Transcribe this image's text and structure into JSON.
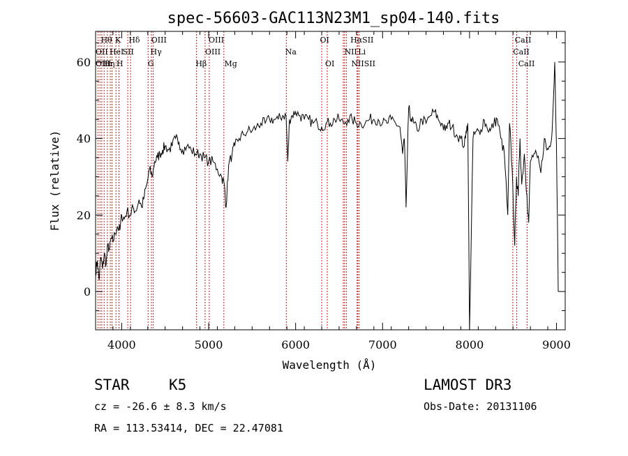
{
  "chart_data": {
    "type": "line",
    "title": "spec-56603-GAC113N23M1_sp04-140.fits",
    "xlabel": "Wavelength (Å)",
    "ylabel": "Flux (relative)",
    "xlim": [
      3700,
      9100
    ],
    "ylim": [
      -10,
      68
    ],
    "xticks": [
      4000,
      5000,
      6000,
      7000,
      8000,
      9000
    ],
    "yticks": [
      0,
      20,
      40,
      60
    ],
    "grid": false,
    "series": [
      {
        "x": [
          3700,
          3720,
          3740,
          3760,
          3780,
          3800,
          3820,
          3840,
          3860,
          3880,
          3900,
          3920,
          3950,
          3980,
          4000,
          4030,
          4060,
          4100,
          4130,
          4160,
          4200,
          4230,
          4260,
          4290,
          4320,
          4350,
          4380,
          4410,
          4440,
          4470,
          4500,
          4540,
          4580,
          4620,
          4660,
          4700,
          4750,
          4800,
          4850,
          4900,
          4950,
          5000,
          5050,
          5100,
          5150,
          5180,
          5200,
          5230,
          5270,
          5300,
          5350,
          5400,
          5450,
          5500,
          5550,
          5600,
          5650,
          5700,
          5750,
          5800,
          5850,
          5890,
          5910,
          5930,
          5960,
          6000,
          6050,
          6100,
          6150,
          6200,
          6250,
          6300,
          6350,
          6400,
          6450,
          6500,
          6550,
          6600,
          6650,
          6700,
          6750,
          6800,
          6850,
          6900,
          6950,
          7000,
          7050,
          7100,
          7150,
          7200,
          7230,
          7250,
          7270,
          7300,
          7330,
          7360,
          7400,
          7450,
          7500,
          7550,
          7600,
          7640,
          7680,
          7720,
          7760,
          7800,
          7850,
          7900,
          7940,
          7960,
          7980,
          8000,
          8040,
          8080,
          8120,
          8160,
          8200,
          8240,
          8280,
          8320,
          8360,
          8400,
          8440,
          8460,
          8490,
          8520,
          8540,
          8560,
          8580,
          8600,
          8630,
          8660,
          8680,
          8700,
          8740,
          8780,
          8820,
          8860,
          8890,
          8920,
          8950,
          8980,
          9000,
          9020
        ],
        "values": [
          5,
          8,
          3,
          9,
          6,
          10,
          7,
          12,
          11,
          14,
          13,
          15,
          17,
          16,
          20,
          19,
          21,
          20,
          22,
          21,
          24,
          22,
          25,
          28,
          32,
          30,
          34,
          35,
          36,
          37,
          38,
          37,
          38,
          40,
          39,
          37,
          38,
          37,
          36,
          36,
          35,
          34,
          34,
          32,
          30,
          28,
          22,
          33,
          36,
          38,
          40,
          41,
          42,
          42,
          43,
          44,
          44,
          45,
          45,
          45,
          46,
          46,
          34,
          45,
          46,
          47,
          46,
          45,
          45,
          44,
          44,
          43,
          44,
          44,
          45,
          45,
          44,
          45,
          45,
          44,
          44,
          44,
          45,
          45,
          45,
          44,
          44,
          45,
          44,
          43,
          36,
          40,
          22,
          48,
          45,
          44,
          42,
          45,
          44,
          46,
          47,
          45,
          44,
          42,
          44,
          43,
          41,
          40,
          38,
          42,
          44,
          -10,
          40,
          42,
          41,
          45,
          43,
          42,
          44,
          45,
          40,
          36,
          20,
          44,
          32,
          12,
          30,
          25,
          40,
          28,
          36,
          25,
          18,
          34,
          36,
          35,
          31,
          40,
          37,
          38,
          42,
          60,
          38,
          0
        ]
      }
    ],
    "lines": [
      {
        "x": 3727,
        "labels": [
          "OII"
        ]
      },
      {
        "x": 3750,
        "labels": [
          "OIII"
        ]
      },
      {
        "x": 3771,
        "labels": [
          "OIII"
        ]
      },
      {
        "x": 3798,
        "labels": [
          "Hθ"
        ]
      },
      {
        "x": 3835,
        "labels": [
          "Hη"
        ]
      },
      {
        "x": 3869,
        "labels": [
          "He I"
        ]
      },
      {
        "x": 3889,
        "labels": [
          "HeI"
        ]
      },
      {
        "x": 3934,
        "labels": [
          "K"
        ]
      },
      {
        "x": 3969,
        "labels": [
          "H"
        ]
      },
      {
        "x": 4070,
        "labels": [
          "SII"
        ]
      },
      {
        "x": 4102,
        "labels": [
          "Hδ"
        ]
      },
      {
        "x": 4304,
        "labels": [
          "G"
        ]
      },
      {
        "x": 4341,
        "labels": [
          "Hγ"
        ]
      },
      {
        "x": 4363,
        "labels": [
          "OIII"
        ]
      },
      {
        "x": 4861,
        "labels": [
          "Hβ"
        ]
      },
      {
        "x": 4959,
        "labels": [
          "OIII"
        ]
      },
      {
        "x": 5007,
        "labels": [
          "OIII"
        ]
      },
      {
        "x": 5175,
        "labels": [
          "Mg"
        ]
      },
      {
        "x": 5893,
        "labels": [
          "Na"
        ]
      },
      {
        "x": 6300,
        "labels": [
          "OI"
        ]
      },
      {
        "x": 6364,
        "labels": [
          "OI"
        ]
      },
      {
        "x": 6548,
        "labels": [
          "NII"
        ]
      },
      {
        "x": 6563,
        "labels": [
          "Hα"
        ]
      },
      {
        "x": 6583,
        "labels": [
          "NII"
        ]
      },
      {
        "x": 6707,
        "labels": [
          "Li"
        ]
      },
      {
        "x": 6716,
        "labels": [
          "SII"
        ]
      },
      {
        "x": 6731,
        "labels": [
          "SII"
        ]
      },
      {
        "x": 8498,
        "labels": [
          "CaII"
        ]
      },
      {
        "x": 8542,
        "labels": [
          "CaII"
        ]
      },
      {
        "x": 8662,
        "labels": [
          "CaII"
        ]
      }
    ],
    "line_label_text": [
      {
        "text": "Hθ",
        "x": 3760,
        "row": 1
      },
      {
        "text": "K",
        "x": 3925,
        "row": 1
      },
      {
        "text": "Hδ",
        "x": 4080,
        "row": 1
      },
      {
        "text": "OIII",
        "x": 4340,
        "row": 1
      },
      {
        "text": "OIII",
        "x": 5000,
        "row": 1
      },
      {
        "text": "OI",
        "x": 6280,
        "row": 1
      },
      {
        "text": "HαSII",
        "x": 6630,
        "row": 1
      },
      {
        "text": "CaII",
        "x": 8520,
        "row": 1
      },
      {
        "text": "OII",
        "x": 3700,
        "row": 2
      },
      {
        "text": "HeI",
        "x": 3860,
        "row": 2
      },
      {
        "text": "SII",
        "x": 4010,
        "row": 2
      },
      {
        "text": "Hγ",
        "x": 4330,
        "row": 2
      },
      {
        "text": "OIII",
        "x": 4960,
        "row": 2
      },
      {
        "text": "Na",
        "x": 5880,
        "row": 2
      },
      {
        "text": "NII",
        "x": 6560,
        "row": 2
      },
      {
        "text": "Li",
        "x": 6720,
        "row": 2
      },
      {
        "text": "CaII",
        "x": 8500,
        "row": 2
      },
      {
        "text": "OIII",
        "x": 3700,
        "row": 3
      },
      {
        "text": "Hη",
        "x": 3790,
        "row": 3
      },
      {
        "text": "H",
        "x": 3940,
        "row": 3
      },
      {
        "text": "G",
        "x": 4300,
        "row": 3
      },
      {
        "text": "Hβ",
        "x": 4850,
        "row": 3
      },
      {
        "text": "Mg",
        "x": 5180,
        "row": 3
      },
      {
        "text": "OI",
        "x": 6340,
        "row": 3
      },
      {
        "text": "NIISII",
        "x": 6640,
        "row": 3
      },
      {
        "text": "CaII",
        "x": 8560,
        "row": 3
      }
    ]
  },
  "info": {
    "object_class": "STAR",
    "subclass": "K5",
    "survey": "LAMOST DR3",
    "redshift": "cz = -26.6 ± 8.3 km/s",
    "obs_date": "Obs-Date: 20131106",
    "coords": "RA = 113.53414, DEC =  22.47081"
  }
}
